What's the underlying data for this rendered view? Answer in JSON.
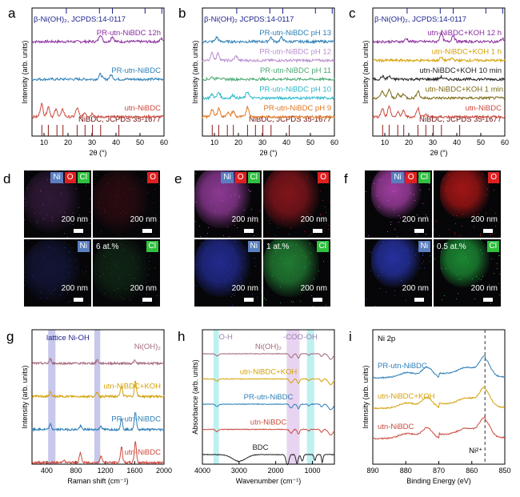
{
  "panels": {
    "a": {
      "letter": "a"
    },
    "b": {
      "letter": "b"
    },
    "c": {
      "letter": "c"
    },
    "d": {
      "letter": "d"
    },
    "e": {
      "letter": "e"
    },
    "f": {
      "letter": "f"
    },
    "g": {
      "letter": "g"
    },
    "h": {
      "letter": "h"
    },
    "i": {
      "letter": "i"
    }
  },
  "maps": {
    "d": {
      "ni": "Ni",
      "o": "O",
      "cl": "Cl",
      "scale": "200 nm",
      "conc": "6 at.%"
    },
    "e": {
      "ni": "Ni",
      "o": "O",
      "cl": "Cl",
      "scale": "200 nm",
      "conc": "1 at.%"
    },
    "f": {
      "ni": "Ni",
      "o": "O",
      "cl": "Cl",
      "scale": "200 nm",
      "conc": "0.5 at.%"
    }
  },
  "colors": {
    "purple": "#8b2d9e",
    "blue": "#2e7fb7",
    "red": "#cc4a3d",
    "lilac": "#b98fd0",
    "green": "#4aa872",
    "cyan": "#29b9c9",
    "orange": "#e0761f",
    "olive": "#7c6a14",
    "mauve": "#a46a7f",
    "gold": "#d4a20a",
    "black": "#222222",
    "navy": "#1a1f8c"
  },
  "chart_data": [
    {
      "panel": "a",
      "type": "line",
      "xlabel": "2θ (°)",
      "ylabel": "Intensity (arb. units)",
      "xlim": [
        5,
        60
      ],
      "xticks": [
        10,
        20,
        30,
        40,
        50,
        60
      ],
      "ref_top": {
        "label": "β-Ni(OH)₂, JCPDS:14-0117",
        "peaks": [
          19.3,
          33.1,
          38.5,
          52.1,
          59.1
        ]
      },
      "ref_bottom": {
        "label": "NiBDC, JCPDS 35-1677",
        "peaks": [
          9.1,
          11.8,
          15.4,
          17.9,
          23.8,
          27.1,
          30.2,
          33.6,
          41.2
        ]
      },
      "series": [
        {
          "name": "PR-utn-NiBDC 12h",
          "color": "purple",
          "peaks": [
            [
              33.5,
              0.5
            ],
            [
              38.5,
              0.35
            ],
            [
              59,
              0.2
            ]
          ]
        },
        {
          "name": "PR-utn-NiBDC",
          "color": "blue",
          "peaks": [
            [
              33.5,
              0.35
            ],
            [
              38,
              0.3
            ]
          ]
        },
        {
          "name": "utn-NiBDC",
          "color": "red",
          "peaks": [
            [
              9,
              0.9
            ],
            [
              11.8,
              0.7
            ],
            [
              15,
              0.5
            ],
            [
              17.8,
              0.5
            ],
            [
              23.8,
              0.6
            ],
            [
              27,
              0.3
            ],
            [
              30.2,
              0.25
            ]
          ]
        }
      ]
    },
    {
      "panel": "b",
      "type": "line",
      "xlabel": "2θ (°)",
      "ylabel": "Intensity (arb. units)",
      "xlim": [
        5,
        60
      ],
      "xticks": [
        10,
        20,
        30,
        40,
        50,
        60
      ],
      "ref_top": {
        "label": "β-Ni(OH)₂ JCPDS:14-0117",
        "peaks": [
          19.3,
          33.1,
          38.5,
          52.1,
          59.1
        ]
      },
      "ref_bottom": {
        "label": "NiBDC, JCPDS 35-1677",
        "peaks": [
          9.1,
          11.8,
          15.4,
          17.9,
          23.8,
          27.1,
          30.2,
          33.6,
          41.2
        ]
      },
      "series": [
        {
          "name": "PR-utn-NiBDC pH 13",
          "color": "blue",
          "peaks": [
            [
              11,
              0.3
            ],
            [
              33.5,
              0.3
            ],
            [
              38,
              0.3
            ]
          ]
        },
        {
          "name": "PR-utn-NiBDC pH 12",
          "color": "lilac",
          "peaks": [
            [
              9,
              0.5
            ],
            [
              11.5,
              0.5
            ],
            [
              19,
              0.3
            ]
          ]
        },
        {
          "name": "PR-utn-NiBDC pH 11",
          "color": "green",
          "peaks": [
            [
              9,
              0.15
            ],
            [
              11.8,
              0.15
            ]
          ]
        },
        {
          "name": "PR-utn-NiBDC pH 10",
          "color": "cyan",
          "peaks": [
            [
              9,
              0.25
            ],
            [
              11.8,
              0.4
            ],
            [
              17.8,
              0.2
            ],
            [
              23.8,
              0.45
            ]
          ]
        },
        {
          "name": "PR-utn-NiBDC pH 9",
          "color": "orange",
          "peaks": [
            [
              9,
              0.5
            ],
            [
              11.8,
              0.6
            ],
            [
              15.5,
              0.3
            ],
            [
              17.8,
              0.4
            ],
            [
              23.8,
              0.7
            ]
          ]
        }
      ]
    },
    {
      "panel": "c",
      "type": "line",
      "xlabel": "2θ (°)",
      "ylabel": "Intensity (arb. units)",
      "xlim": [
        5,
        60
      ],
      "xticks": [
        10,
        20,
        30,
        40,
        50,
        60
      ],
      "ref_top": {
        "label": "β-Ni(OH)₂, JCPDS:14-0117",
        "peaks": [
          19.3,
          33.1,
          38.5,
          52.1,
          59.1
        ]
      },
      "ref_bottom": {
        "label": "NiBDC, JCPDS 35-1677",
        "peaks": [
          9.1,
          11.8,
          15.4,
          17.9,
          23.8,
          27.1,
          30.2,
          33.6,
          41.2
        ]
      },
      "series": [
        {
          "name": "utn-NiBDC+KOH 12 h",
          "color": "purple",
          "peaks": [
            [
              19,
              0.2
            ],
            [
              33.5,
              0.6
            ],
            [
              38.5,
              0.45
            ],
            [
              59,
              0.2
            ]
          ]
        },
        {
          "name": "utn-NiBDC+KOH 1 h",
          "color": "gold",
          "peaks": [
            [
              33.5,
              0.2
            ],
            [
              38,
              0.15
            ]
          ]
        },
        {
          "name": "utn-NiBDC+KOH 10 min",
          "color": "black",
          "peaks": [
            [
              9,
              0.2
            ],
            [
              11.8,
              0.2
            ],
            [
              33.5,
              0.15
            ]
          ]
        },
        {
          "name": "utn-NiBDC+KOH 1 min",
          "color": "olive",
          "peaks": [
            [
              9,
              0.5
            ],
            [
              11.8,
              0.6
            ],
            [
              15.5,
              0.25
            ],
            [
              17.8,
              0.3
            ],
            [
              23.8,
              0.5
            ]
          ]
        },
        {
          "name": "utn-NiBDC",
          "color": "red",
          "peaks": [
            [
              9,
              0.6
            ],
            [
              11.8,
              0.7
            ],
            [
              15.5,
              0.3
            ],
            [
              17.8,
              0.4
            ],
            [
              23.8,
              0.6
            ],
            [
              27,
              0.2
            ]
          ]
        }
      ]
    },
    {
      "panel": "g",
      "type": "line",
      "xlabel": "Raman shift (cm⁻¹)",
      "ylabel": "Intensity (arb. units)",
      "xlim": [
        200,
        2000
      ],
      "xticks": [
        400,
        800,
        1200,
        1600,
        2000
      ],
      "band_label": "lattice Ni-OH",
      "bands": [
        [
          420,
          520
        ],
        [
          1050,
          1130
        ]
      ],
      "series": [
        {
          "name": "Ni(OH)₂",
          "color": "mauve",
          "peaks": [
            [
              450,
              0.25
            ],
            [
              1090,
              0.2
            ],
            [
              1600,
              0.15
            ]
          ]
        },
        {
          "name": "utn-NiBDC+KOH",
          "color": "gold",
          "peaks": [
            [
              450,
              0.25
            ],
            [
              1090,
              0.25
            ],
            [
              1420,
              0.6
            ],
            [
              1610,
              0.9
            ]
          ]
        },
        {
          "name": "PR-utn-NiBDC",
          "color": "blue",
          "peaks": [
            [
              450,
              0.3
            ],
            [
              860,
              0.2
            ],
            [
              1140,
              0.2
            ],
            [
              1420,
              0.6
            ],
            [
              1610,
              1.0
            ]
          ]
        },
        {
          "name": "utn-NiBDC",
          "color": "red",
          "peaks": [
            [
              630,
              0.15
            ],
            [
              860,
              0.55
            ],
            [
              1140,
              0.4
            ],
            [
              1420,
              0.9
            ],
            [
              1610,
              1.2
            ]
          ]
        }
      ]
    },
    {
      "panel": "h",
      "type": "line",
      "xlabel": "Wavenumber (cm⁻¹)",
      "ylabel": "Absorbance (arb. units)",
      "xlim": [
        4000,
        400
      ],
      "xticks": [
        4000,
        3000,
        2000,
        1000
      ],
      "bands": [
        {
          "label": "O-H",
          "range": [
            3700,
            3550
          ],
          "color": "#bff0f0"
        },
        {
          "label": "-COO",
          "range": [
            1700,
            1350
          ],
          "color": "#e8d4f0"
        },
        {
          "label": "-OH",
          "range": [
            1150,
            950
          ],
          "color": "#bff0f0"
        }
      ],
      "series": [
        {
          "name": "Ni(OH)₂",
          "color": "mauve"
        },
        {
          "name": "utn-NiBDC+KOH",
          "color": "gold"
        },
        {
          "name": "PR-utn-NiBDC",
          "color": "blue"
        },
        {
          "name": "utn-NiBDC",
          "color": "red"
        },
        {
          "name": "BDC",
          "color": "black"
        }
      ]
    },
    {
      "panel": "i",
      "type": "line",
      "title": "Ni 2p",
      "xlabel": "Binding Energy (eV)",
      "ylabel": "Intensity (arb. units)",
      "xlim": [
        890,
        850
      ],
      "xticks": [
        890,
        880,
        870,
        860,
        850
      ],
      "marker": {
        "label": "Ni²⁺",
        "value": 856
      },
      "series": [
        {
          "name": "PR-utn-NiBDC",
          "color": "blue"
        },
        {
          "name": "utn-NiBDC+KOH",
          "color": "gold"
        },
        {
          "name": "utn-NiBDC",
          "color": "red"
        }
      ]
    }
  ]
}
